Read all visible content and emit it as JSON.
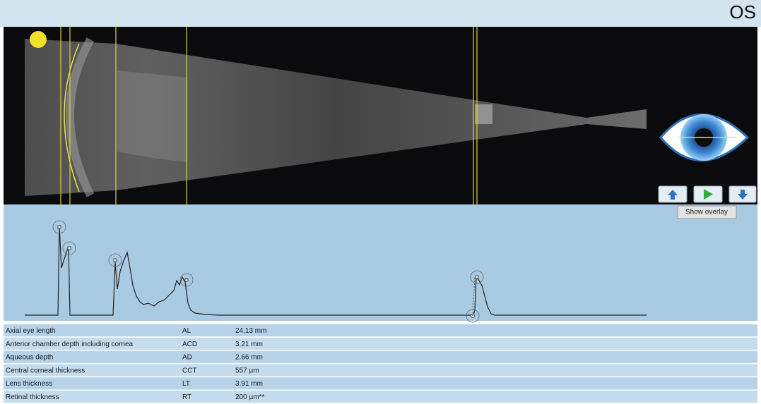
{
  "header": {
    "eye": "OS"
  },
  "controls": {
    "tooltip": "Show overlay"
  },
  "table": {
    "rows": [
      [
        "Axial eye length",
        "AL",
        "24.13 mm"
      ],
      [
        "Anterior chamber depth including cornea",
        "ACD",
        "3.21 mm"
      ],
      [
        "Aqueous depth",
        "AD",
        "2.66 mm"
      ],
      [
        "Central corneal thickness",
        "CCT",
        "557 µm"
      ],
      [
        "Lens thickness",
        "LT",
        "3.91 mm"
      ],
      [
        "Retinal thickness",
        "RT",
        "200 µm**"
      ]
    ]
  }
}
